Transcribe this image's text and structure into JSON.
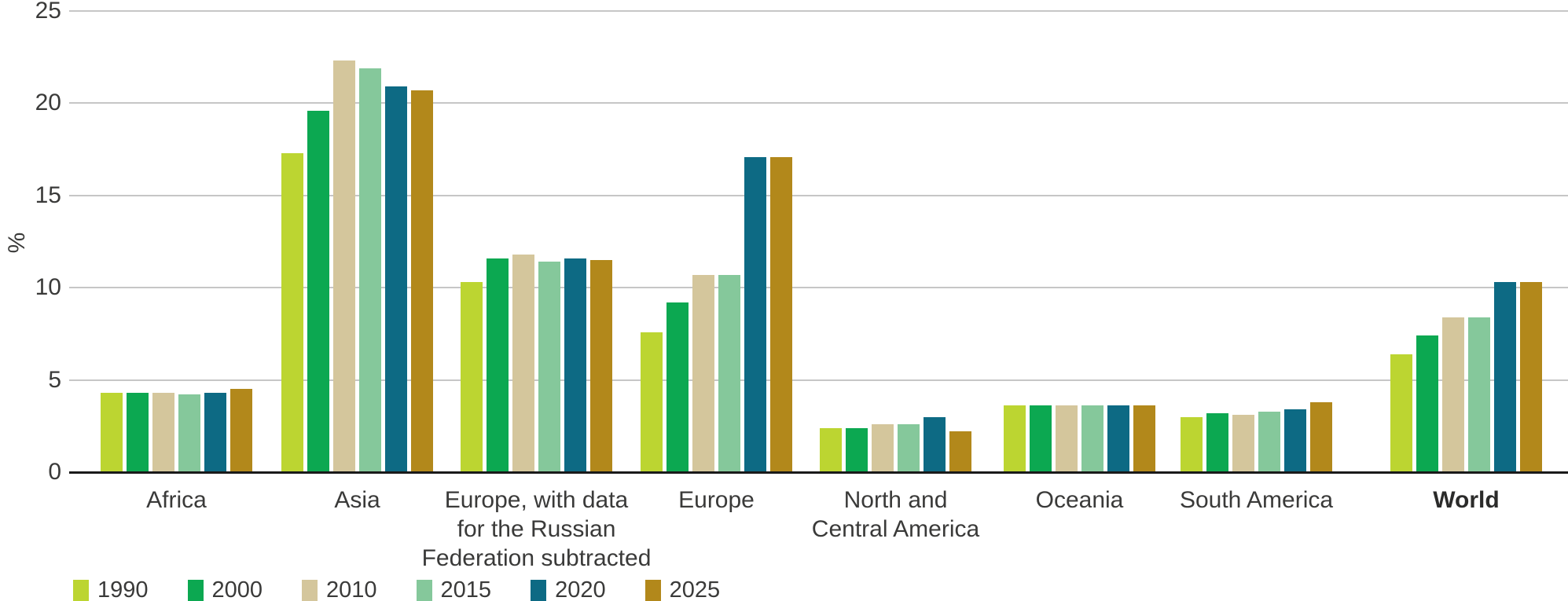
{
  "chart_data": {
    "type": "bar",
    "title": "",
    "xlabel": "",
    "ylabel": "%",
    "ylim": [
      0,
      25
    ],
    "yticks": [
      0,
      5,
      10,
      15,
      20,
      25
    ],
    "grid": true,
    "legend_position": "bottom-left",
    "categories": [
      {
        "label": "Africa",
        "bold": false
      },
      {
        "label": "Asia",
        "bold": false
      },
      {
        "label": "Europe, with data\nfor the Russian\nFederation subtracted",
        "bold": false
      },
      {
        "label": "Europe",
        "bold": false
      },
      {
        "label": "North and\nCentral America",
        "bold": false
      },
      {
        "label": "Oceania",
        "bold": false
      },
      {
        "label": "South America",
        "bold": false
      },
      {
        "label": "World",
        "bold": true
      }
    ],
    "series": [
      {
        "name": "1990",
        "color": "#bcd531",
        "values": [
          4.3,
          17.3,
          10.3,
          7.6,
          2.4,
          3.6,
          3.0,
          6.4
        ]
      },
      {
        "name": "2000",
        "color": "#0ca851",
        "values": [
          4.3,
          19.6,
          11.6,
          9.2,
          2.4,
          3.6,
          3.2,
          7.4
        ]
      },
      {
        "name": "2010",
        "color": "#d4c69c",
        "values": [
          4.3,
          22.3,
          11.8,
          10.7,
          2.6,
          3.6,
          3.1,
          8.4
        ]
      },
      {
        "name": "2015",
        "color": "#85c89b",
        "values": [
          4.2,
          21.9,
          11.4,
          10.7,
          2.6,
          3.6,
          3.3,
          8.4
        ]
      },
      {
        "name": "2020",
        "color": "#0d6a84",
        "values": [
          4.3,
          20.9,
          11.6,
          17.1,
          3.0,
          3.6,
          3.4,
          10.3
        ]
      },
      {
        "name": "2025",
        "color": "#b2881b",
        "values": [
          4.5,
          20.7,
          11.5,
          17.1,
          2.2,
          3.6,
          3.8,
          10.3
        ]
      }
    ],
    "axis_colors": {
      "text": "#3a3a39",
      "gridline": "#c6c6c6",
      "baseline": "#1a1a1a"
    }
  }
}
